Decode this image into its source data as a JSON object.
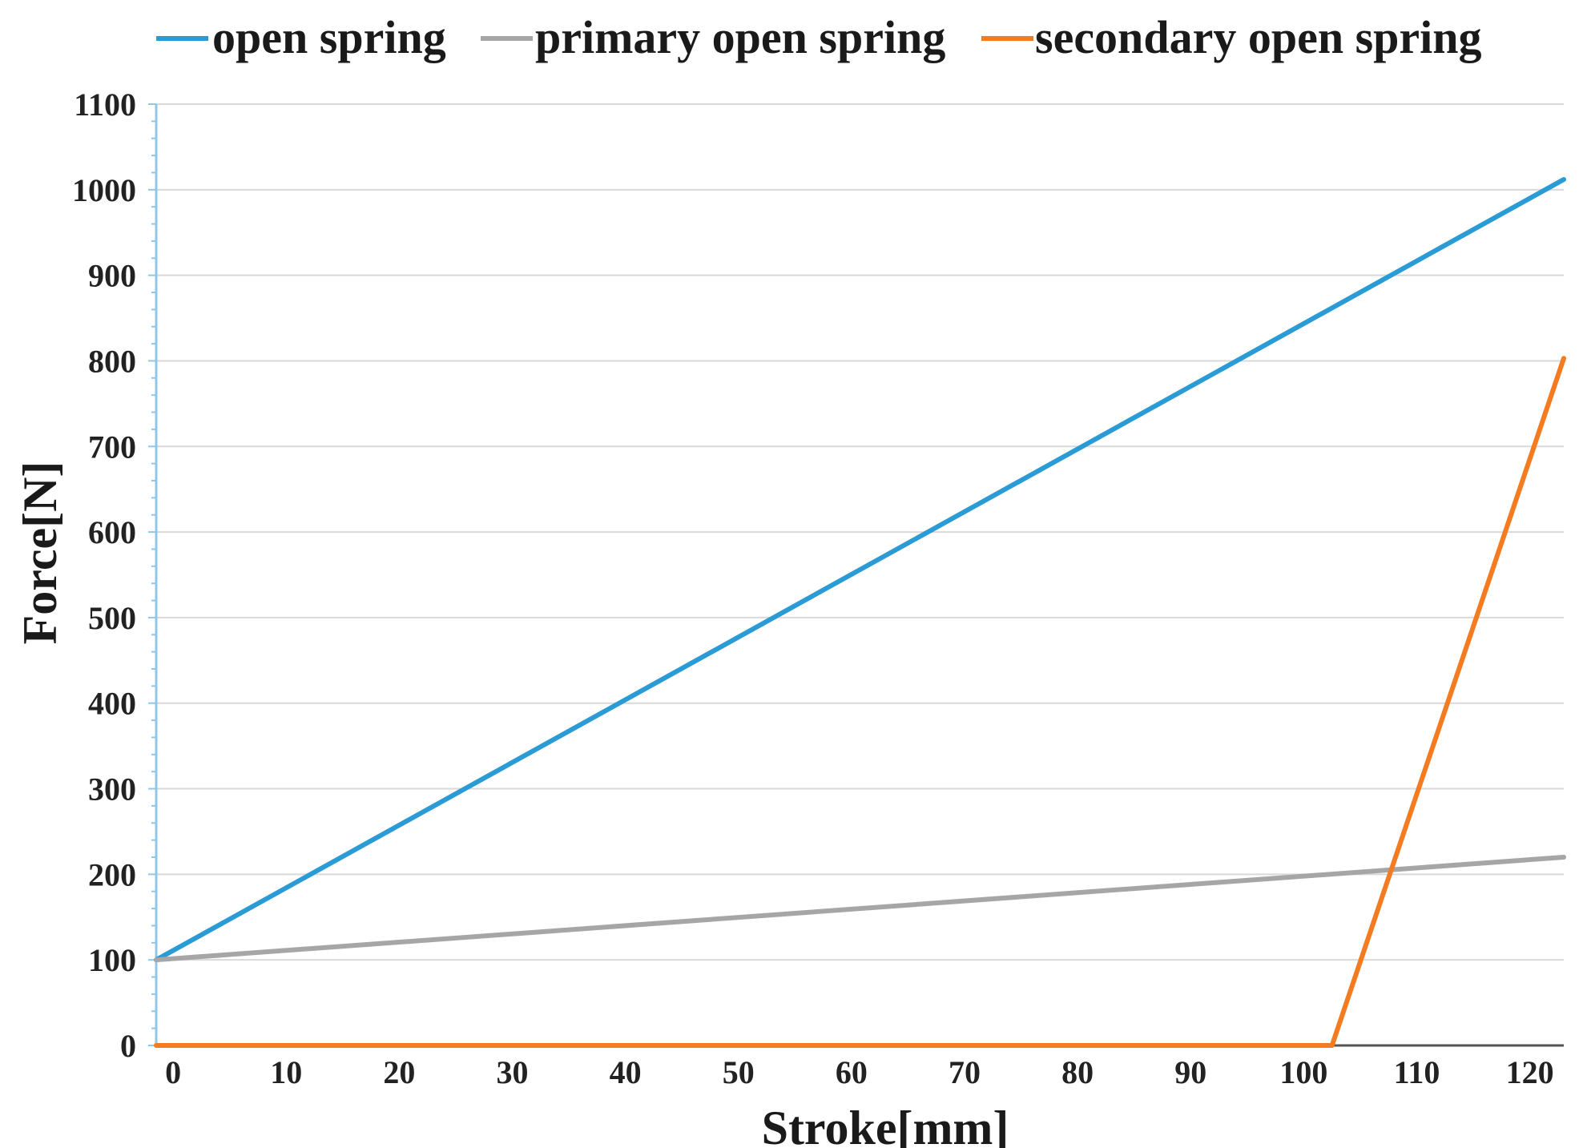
{
  "chart_data": {
    "type": "line",
    "title": "",
    "xlabel": "Stroke[mm]",
    "ylabel": "Force[N]",
    "xlim": [
      -1.5,
      123
    ],
    "ylim": [
      0,
      1100
    ],
    "xticks": [
      0,
      10,
      20,
      30,
      40,
      50,
      60,
      70,
      80,
      90,
      100,
      110,
      120
    ],
    "yticks": [
      0,
      100,
      200,
      300,
      400,
      500,
      600,
      700,
      800,
      900,
      1000,
      1100
    ],
    "xtick_labels": [
      "0",
      "10",
      "20",
      "30",
      "40",
      "50",
      "60",
      "70",
      "80",
      "90",
      "100",
      "110",
      "120"
    ],
    "ytick_labels": [
      "0",
      "100",
      "200",
      "300",
      "400",
      "500",
      "600",
      "700",
      "800",
      "900",
      "1000",
      "1100"
    ],
    "grid": "horizontal",
    "legend_position": "top",
    "series": [
      {
        "name": "open spring",
        "color": "#2b9bd6",
        "x": [
          -1.5,
          123
        ],
        "y": [
          100,
          1012
        ]
      },
      {
        "name": "primary open spring",
        "color": "#a6a6a6",
        "x": [
          -1.5,
          123
        ],
        "y": [
          100,
          220
        ]
      },
      {
        "name": "secondary open spring",
        "color": "#f47b20",
        "x": [
          -1.5,
          102.5,
          123
        ],
        "y": [
          0,
          0,
          803
        ]
      }
    ]
  }
}
